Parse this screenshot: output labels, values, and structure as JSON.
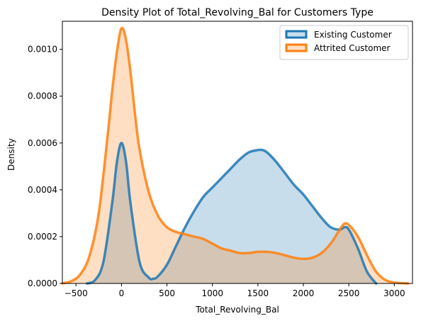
{
  "chart_data": {
    "type": "area",
    "title": "Density Plot of Total_Revolving_Bal for Customers Type",
    "xlabel": "Total_Revolving_Bal",
    "ylabel": "Density",
    "xlim": [
      -650,
      3200
    ],
    "ylim": [
      0,
      0.00112
    ],
    "x_ticks": [
      -500,
      0,
      500,
      1000,
      1500,
      2000,
      2500,
      3000
    ],
    "x_tick_labels": [
      "−500",
      "0",
      "500",
      "1000",
      "1500",
      "2000",
      "2500",
      "3000"
    ],
    "y_ticks": [
      0,
      0.0002,
      0.0004,
      0.0006,
      0.0008,
      0.001
    ],
    "y_tick_labels": [
      "0.0000",
      "0.0002",
      "0.0004",
      "0.0006",
      "0.0008",
      "0.0010"
    ],
    "grid": false,
    "legend_position": "top-right",
    "series": [
      {
        "name": "Existing Customer",
        "color": "#1f77b4",
        "fill_color": "#1f77b4",
        "x": [
          -380,
          -300,
          -200,
          -100,
          -50,
          0,
          50,
          100,
          200,
          300,
          350,
          400,
          500,
          600,
          700,
          800,
          900,
          1000,
          1100,
          1200,
          1300,
          1400,
          1500,
          1550,
          1600,
          1700,
          1800,
          1900,
          2000,
          2100,
          2200,
          2300,
          2400,
          2450,
          2500,
          2600,
          2700,
          2800
        ],
        "y": [
          0,
          1e-05,
          9e-05,
          0.00035,
          0.00052,
          0.0006,
          0.00052,
          0.00034,
          9e-05,
          2.5e-05,
          2e-05,
          3e-05,
          8e-05,
          0.00016,
          0.00024,
          0.00031,
          0.00037,
          0.00041,
          0.00045,
          0.00049,
          0.00053,
          0.00056,
          0.00057,
          0.00057,
          0.00056,
          0.00052,
          0.00047,
          0.00042,
          0.00038,
          0.00033,
          0.00028,
          0.00024,
          0.00023,
          0.00024,
          0.00023,
          0.00015,
          5e-05,
          0
        ]
      },
      {
        "name": "Attrited Customer",
        "color": "#ff7f0e",
        "fill_color": "#ff7f0e",
        "x": [
          -650,
          -550,
          -450,
          -350,
          -250,
          -150,
          -100,
          -50,
          0,
          50,
          100,
          150,
          200,
          300,
          400,
          500,
          600,
          700,
          800,
          900,
          1000,
          1100,
          1200,
          1300,
          1400,
          1500,
          1600,
          1700,
          1800,
          1900,
          2000,
          2100,
          2200,
          2300,
          2400,
          2450,
          2500,
          2600,
          2700,
          2800,
          2900,
          3000,
          3150
        ],
        "y": [
          0,
          1e-05,
          4e-05,
          0.00012,
          0.0003,
          0.00064,
          0.00083,
          0.00099,
          0.00109,
          0.00104,
          0.0009,
          0.00072,
          0.00057,
          0.00039,
          0.00029,
          0.00024,
          0.00022,
          0.00021,
          0.0002,
          0.00019,
          0.00017,
          0.00015,
          0.00014,
          0.00013,
          0.00013,
          0.000135,
          0.000135,
          0.00013,
          0.00012,
          0.00011,
          0.000105,
          0.00011,
          0.00013,
          0.00017,
          0.00023,
          0.000255,
          0.00025,
          0.0002,
          0.00012,
          5e-05,
          1.5e-05,
          4e-06,
          0
        ]
      }
    ]
  }
}
